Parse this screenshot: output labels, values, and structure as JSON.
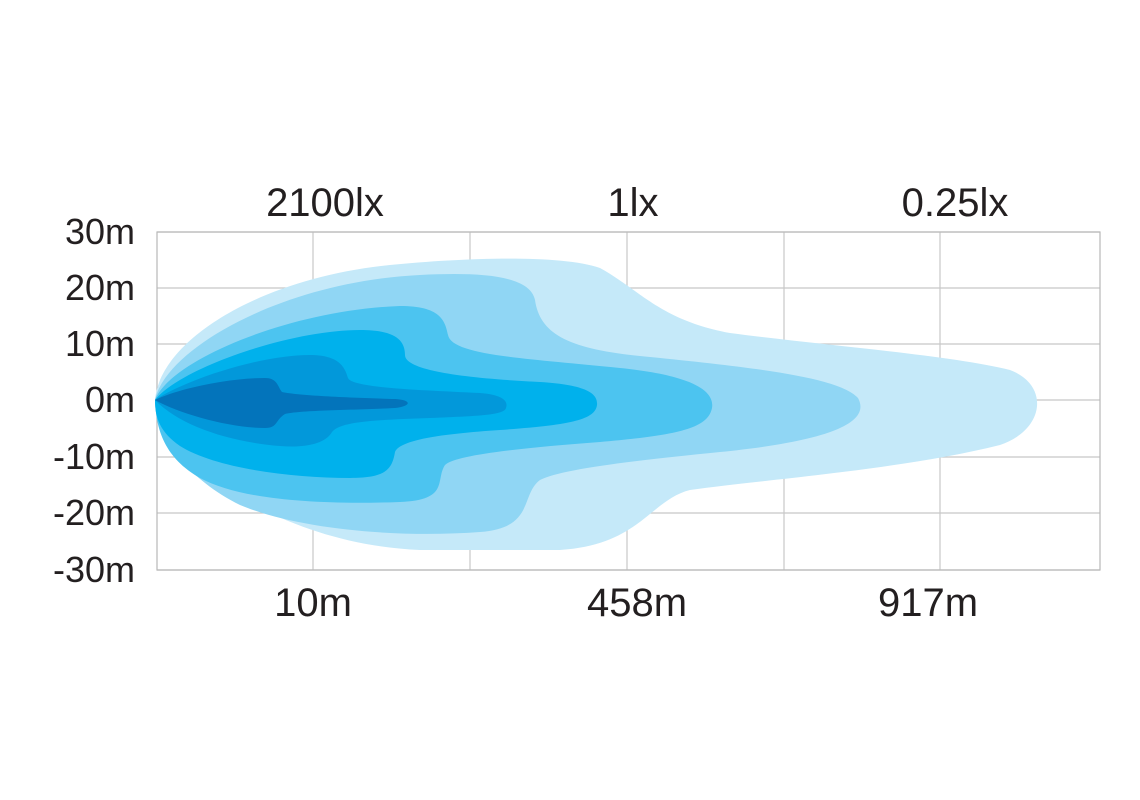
{
  "chart_data": {
    "type": "area",
    "y_ticks": [
      "30m",
      "20m",
      "10m",
      "0m",
      "-10m",
      "-20m",
      "-30m"
    ],
    "x_labels": [
      "10m",
      "458m",
      "917m"
    ],
    "lux_labels": [
      "2100lx",
      "1lx",
      "0.25lx"
    ],
    "ylim": [
      -30,
      30
    ],
    "grid": true,
    "zones": [
      {
        "color": "#c5e9f9"
      },
      {
        "color": "#90d6f4"
      },
      {
        "color": "#4cc4f0"
      },
      {
        "color": "#00b1ec"
      },
      {
        "color": "#0298da"
      },
      {
        "color": "#0374bb"
      }
    ]
  }
}
